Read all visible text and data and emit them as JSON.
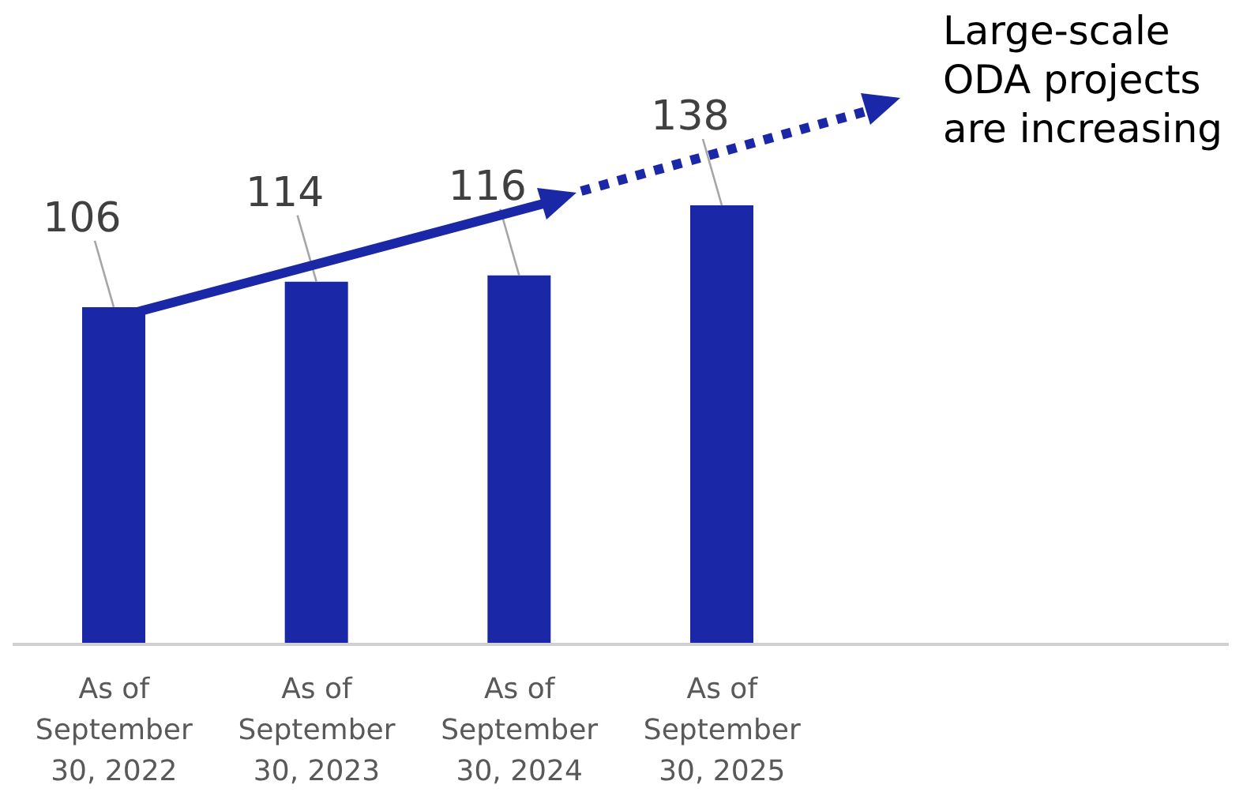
{
  "chart_data": {
    "type": "bar",
    "categories": [
      "As of September 30, 2022",
      "As of September 30, 2023",
      "As of September 30, 2024",
      "As of September 30, 2025",
      null,
      null
    ],
    "values": [
      106,
      114,
      116,
      138,
      null,
      null
    ],
    "color": "#1a27a6",
    "data_labels": true,
    "annotations": [
      "Large-scale ODA projects are increasing"
    ]
  }
}
